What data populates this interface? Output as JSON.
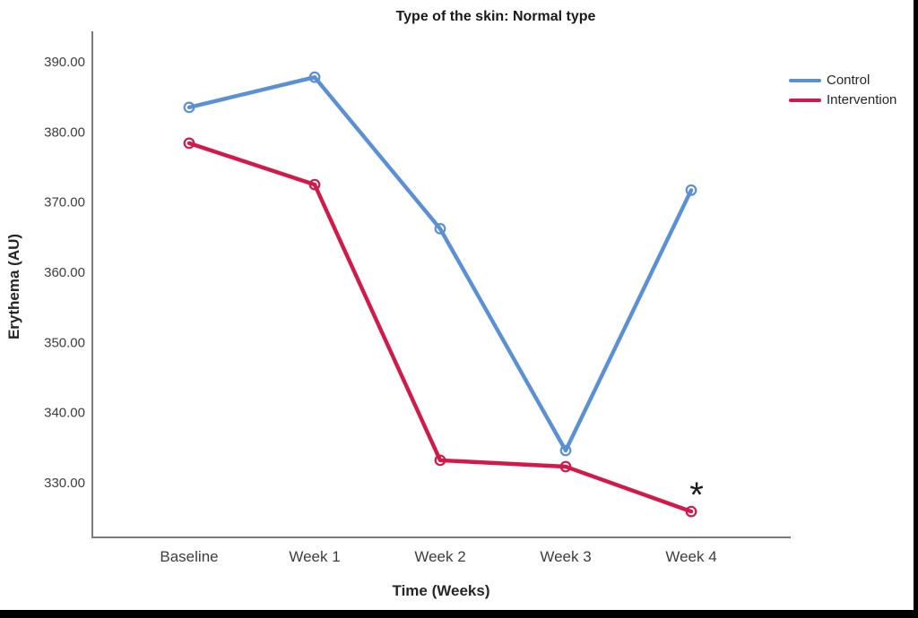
{
  "page": {
    "background": "#ffffff",
    "right_border_color": "#000000",
    "bottom_bar_color": "#000000"
  },
  "chart_data": {
    "type": "line",
    "title": "Type of the skin: Normal type",
    "xlabel": "Time (Weeks)",
    "ylabel": "Erythema (AU)",
    "categories": [
      "Baseline",
      "Week 1",
      "Week 2",
      "Week 3",
      "Week 4"
    ],
    "y_tick_labels": [
      "390.00",
      "380.00",
      "370.00",
      "360.00",
      "350.00",
      "340.00",
      "330.00"
    ],
    "y_tick_values": [
      390,
      380,
      370,
      360,
      350,
      340,
      330
    ],
    "ylim": [
      322.2,
      394.3
    ],
    "grid": false,
    "legend_position": "right",
    "axis_color": "#7a7a7a",
    "series": [
      {
        "name": "Control",
        "color": "#5b90d5",
        "values": [
          383.5,
          387.8,
          366.2,
          334.6,
          371.7
        ]
      },
      {
        "name": "Intervention",
        "color": "#d1194a",
        "values": [
          378.4,
          372.5,
          333.2,
          332.3,
          325.9
        ]
      }
    ],
    "annotation": {
      "text": "*",
      "series": "Intervention",
      "category": "Week 4",
      "position": "above-right of last point",
      "color": "#1a1a1a"
    }
  }
}
